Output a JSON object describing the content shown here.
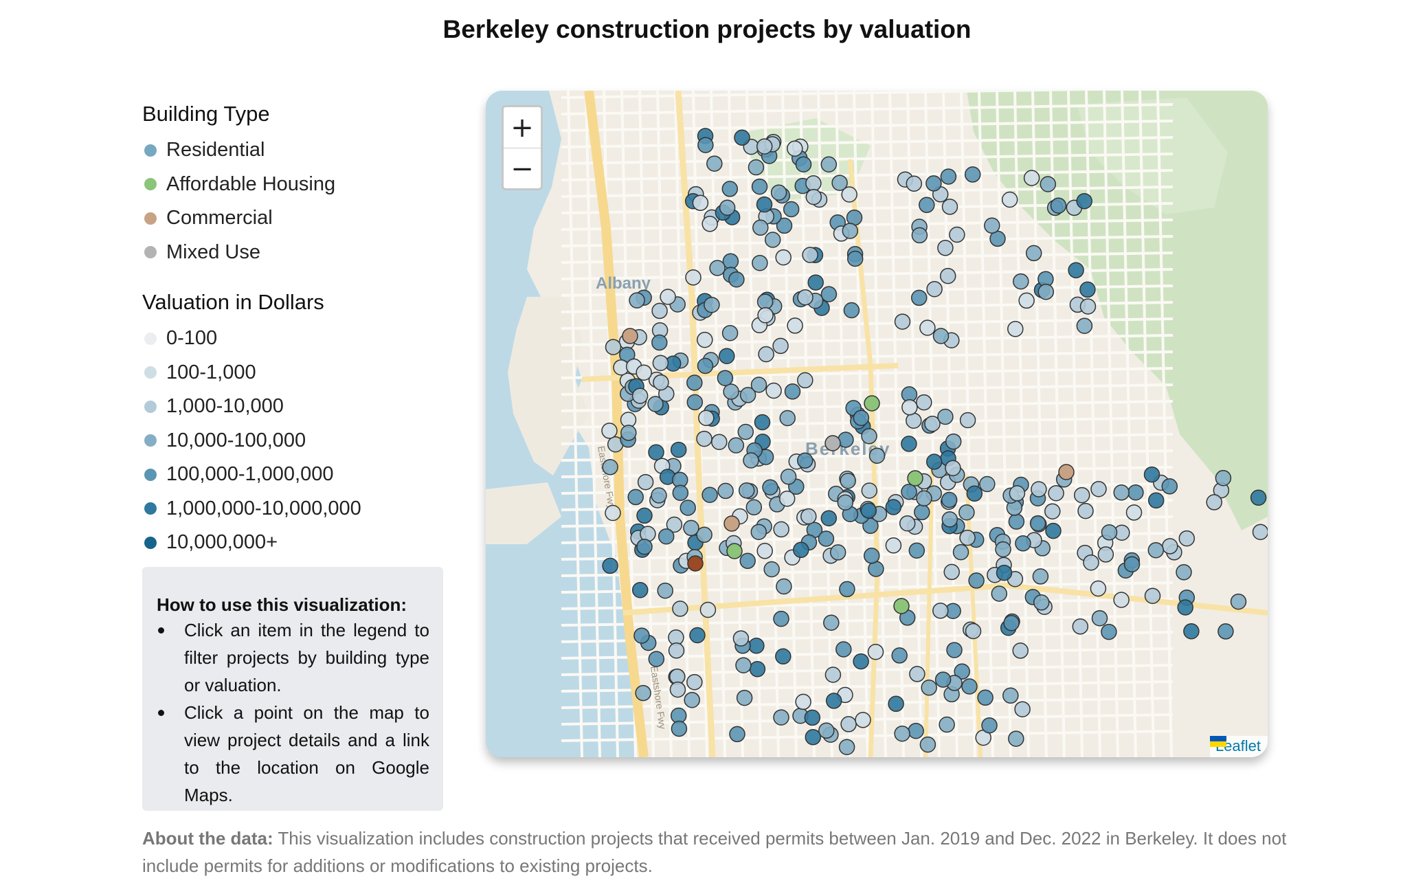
{
  "title": "Berkeley construction projects by valuation",
  "building_type": {
    "heading": "Building Type",
    "items": [
      {
        "label": "Residential",
        "color": "#76a8c2"
      },
      {
        "label": "Affordable Housing",
        "color": "#8cc47a"
      },
      {
        "label": "Commercial",
        "color": "#c8a285"
      },
      {
        "label": "Mixed Use",
        "color": "#b3b3b3"
      }
    ]
  },
  "valuation": {
    "heading": "Valuation in Dollars",
    "items": [
      {
        "label": "0-100",
        "color": "#ebeef0"
      },
      {
        "label": "100-1,000",
        "color": "#cfdde5"
      },
      {
        "label": "1,000-10,000",
        "color": "#b3cad8"
      },
      {
        "label": "10,000-100,000",
        "color": "#85aec4"
      },
      {
        "label": "100,000-1,000,000",
        "color": "#5b95b4"
      },
      {
        "label": "1,000,000-10,000,000",
        "color": "#2f789f"
      },
      {
        "label": "10,000,000+",
        "color": "#15648c"
      }
    ]
  },
  "howto": {
    "title": "How to use this visualization:",
    "items": [
      "Click an item in the legend to filter projects by building type or valuation.",
      "Click a point on the map to view project details and a link to the location on Google Maps."
    ]
  },
  "about": {
    "label": "About the data:",
    "text": " This visualization includes construction projects that received permits between Jan. 2019 and Dec. 2022 in Berkeley. It does not include permits for additions or modifications to existing projects."
  },
  "map": {
    "zoom_in": "+",
    "zoom_out": "−",
    "attribution": "Leaflet",
    "place_labels": [
      "Albany",
      "Berkeley",
      "Eastshore Fwy",
      "Eastshore Fwy"
    ]
  }
}
